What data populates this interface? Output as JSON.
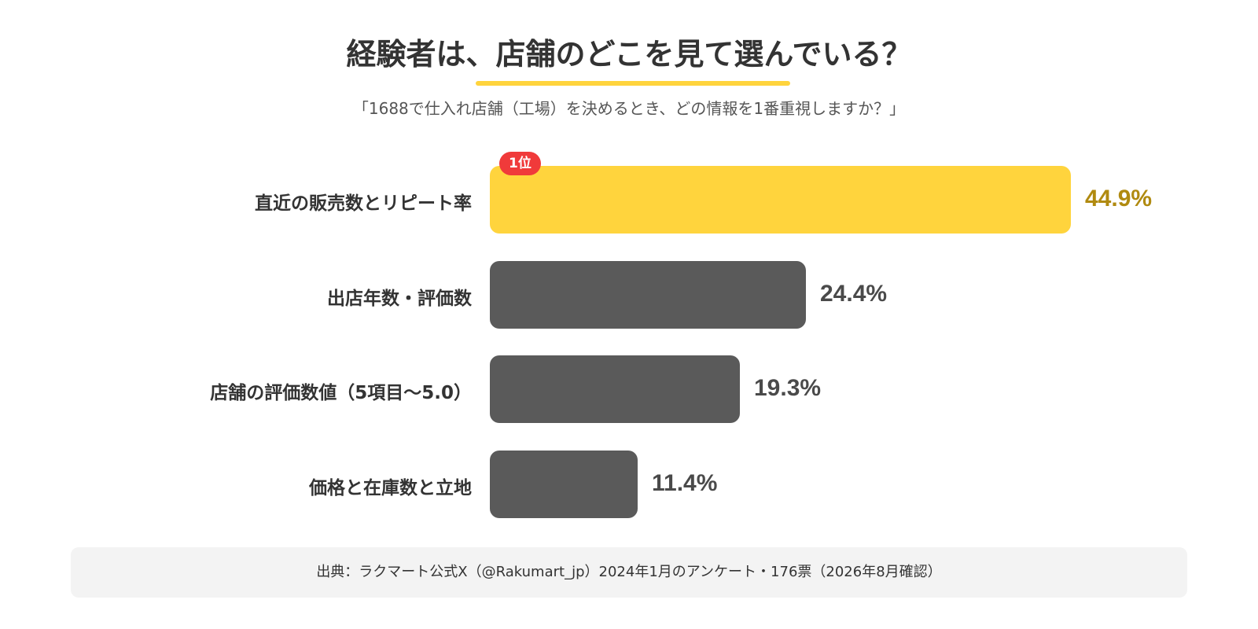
{
  "title": "経験者は、店舗のどこを見て選んでいる？",
  "subtitle": "「1688で仕入れ店舗（工場）を決めるとき、どの情報を1番重視しますか？」",
  "source": "出典：ラクマート公式X（@Rakumart_jp）2024年1月のアンケート・176票（2026年8月確認）",
  "colors": {
    "accent": "#FFD43D",
    "accent_text": "#B08A10",
    "bar": "#5A5A5A",
    "value_text": "#4A4A4A",
    "badge": "#F03A3A"
  },
  "chart_data": {
    "type": "bar",
    "orientation": "horizontal",
    "categories": [
      "直近の販売数とリピート率",
      "出店年数・評価数",
      "店舗の評価数値（5項目～5.0）",
      "価格と在庫数と立地"
    ],
    "values": [
      44.9,
      24.4,
      19.3,
      11.4
    ],
    "value_labels": [
      "44.9%",
      "24.4%",
      "19.3%",
      "11.4%"
    ],
    "unit": "%",
    "highlight_index": 0,
    "highlight_badge": "1位",
    "xlim": [
      0,
      45
    ],
    "grid": false,
    "legend": "none"
  }
}
